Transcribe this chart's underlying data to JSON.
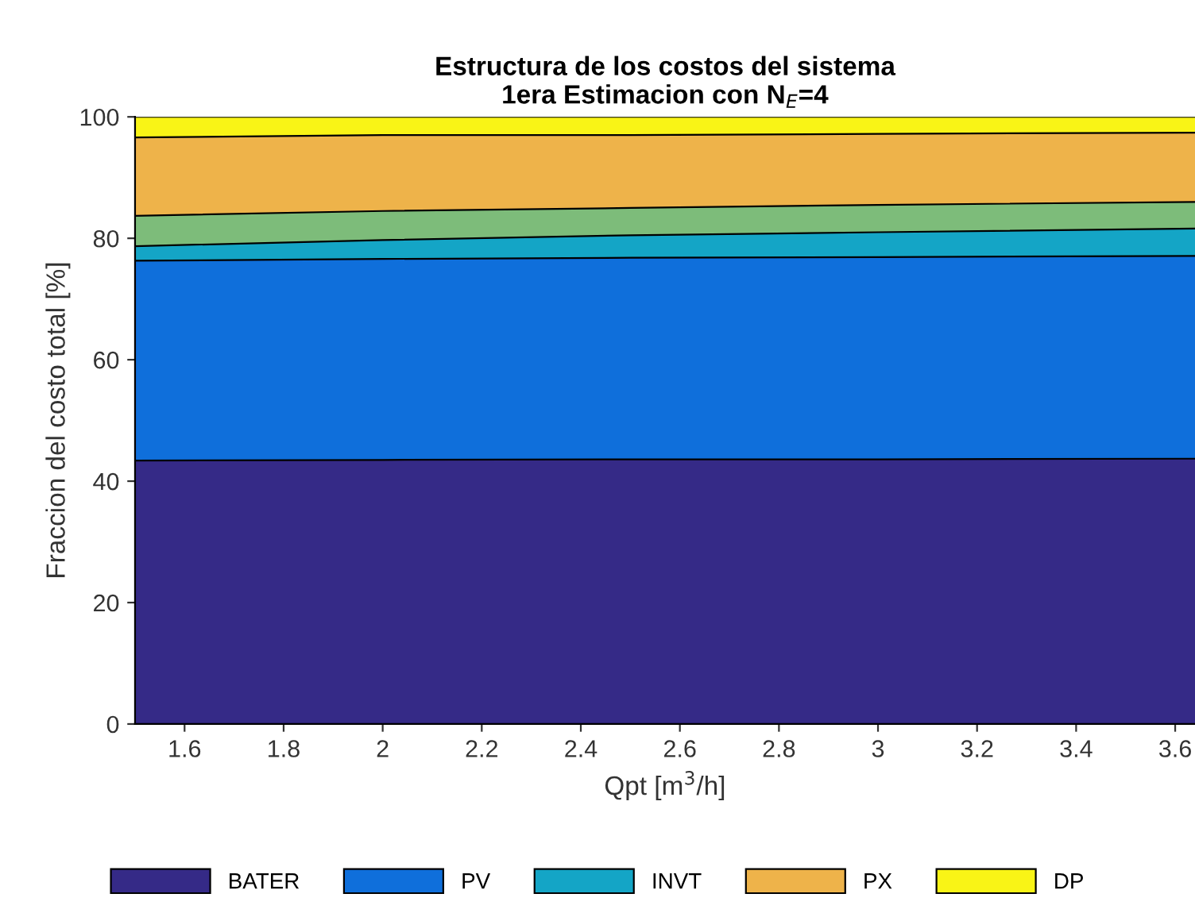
{
  "chart_data": {
    "type": "area",
    "stacked": true,
    "title": "Estructura de los costos del sistema\n1era Estimacion con N$_{E}$=4",
    "xlabel": "Qpt [m$^{3}$/h]",
    "ylabel": "Fraccion del costo total [%]",
    "x": [
      1.5,
      2.0,
      2.5,
      3.0,
      3.64
    ],
    "series": [
      {
        "name": "BATER",
        "color": "#352a87",
        "values": [
          43.4,
          43.5,
          43.6,
          43.6,
          43.7
        ]
      },
      {
        "name": "PV",
        "color": "#0f6fdb",
        "values": [
          32.9,
          33.1,
          33.2,
          33.3,
          33.4
        ]
      },
      {
        "name": "INVT",
        "color": "#14a5c6",
        "values": [
          2.4,
          3.1,
          3.7,
          4.1,
          4.5
        ]
      },
      {
        "color": "#7dbc7a",
        "values": [
          5.0,
          4.8,
          4.5,
          4.5,
          4.4
        ]
      },
      {
        "name": "PX",
        "color": "#eeb34a",
        "values": [
          12.9,
          12.5,
          12.0,
          11.7,
          11.4
        ]
      },
      {
        "name": "DP",
        "color": "#f9f416",
        "values": [
          3.4,
          3.0,
          3.0,
          2.8,
          2.6
        ]
      }
    ],
    "xlim": [
      1.5,
      3.64
    ],
    "ylim": [
      0,
      100
    ],
    "xticks": [
      1.6,
      1.8,
      2,
      2.2,
      2.4,
      2.6,
      2.8,
      3,
      3.2,
      3.4,
      3.6
    ],
    "yticks": [
      0,
      20,
      40,
      60,
      80,
      100
    ],
    "grid": false,
    "legend": "bottom"
  }
}
